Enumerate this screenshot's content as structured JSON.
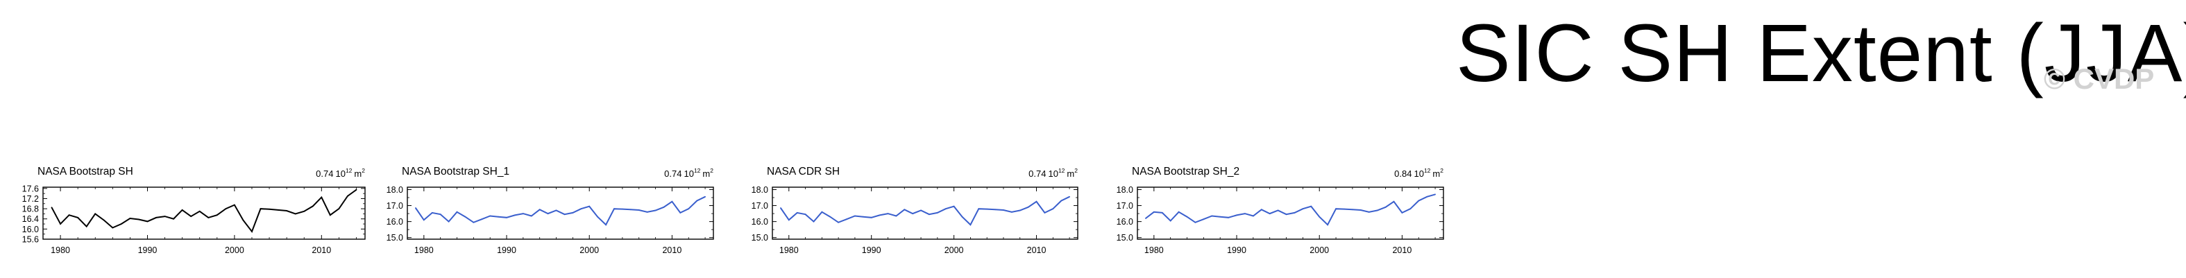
{
  "page": {
    "title": "SIC SH Extent (JJA)",
    "watermark": "© CVDP"
  },
  "colors": {
    "text": "#000000",
    "watermark": "#d2d2d2",
    "obs_line": "#000000",
    "model_line": "#3a5fcd"
  },
  "chart_data": [
    {
      "type": "line",
      "title": "NASA Bootstrap SH",
      "stat_value": "0.74",
      "stat_unit": "10",
      "stat_exp": "12",
      "stat_suffix": "m",
      "stat_suffix_exp": "2",
      "line_color": "#000000",
      "xlim": [
        1978,
        2015
      ],
      "ylim": [
        15.6,
        17.65
      ],
      "xticks": [
        1980,
        1990,
        2000,
        2010
      ],
      "yticks": [
        15.6,
        16.0,
        16.4,
        16.8,
        17.2,
        17.6
      ],
      "ytick_labels": [
        "15.6",
        "16.0",
        "16.4",
        "16.8",
        "17.2",
        "17.6"
      ],
      "yticks_minor": [
        15.8,
        16.2,
        16.6,
        17.0,
        17.4
      ],
      "right_ticks": true,
      "x": [
        1979,
        1980,
        1981,
        1982,
        1983,
        1984,
        1985,
        1986,
        1987,
        1988,
        1989,
        1990,
        1991,
        1992,
        1993,
        1994,
        1995,
        1996,
        1997,
        1998,
        1999,
        2000,
        2001,
        2002,
        2003,
        2004,
        2005,
        2006,
        2007,
        2008,
        2009,
        2010,
        2011,
        2012,
        2013,
        2014
      ],
      "values": [
        16.85,
        16.2,
        16.55,
        16.45,
        16.1,
        16.6,
        16.35,
        16.05,
        16.2,
        16.42,
        16.38,
        16.3,
        16.45,
        16.5,
        16.4,
        16.75,
        16.5,
        16.7,
        16.45,
        16.55,
        16.8,
        16.95,
        16.35,
        15.9,
        16.8,
        16.78,
        16.75,
        16.72,
        16.6,
        16.7,
        16.9,
        17.25,
        16.55,
        16.8,
        17.3,
        17.55
      ]
    },
    {
      "type": "line",
      "title": "NASA Bootstrap SH_1",
      "stat_value": "0.74",
      "stat_unit": "10",
      "stat_exp": "12",
      "stat_suffix": "m",
      "stat_suffix_exp": "2",
      "line_color": "#3a5fcd",
      "xlim": [
        1978,
        2015
      ],
      "ylim": [
        14.9,
        18.15
      ],
      "xticks": [
        1980,
        1990,
        2000,
        2010
      ],
      "yticks": [
        15.0,
        16.0,
        17.0,
        18.0
      ],
      "ytick_labels": [
        "15.0",
        "16.0",
        "17.0",
        "18.0"
      ],
      "yticks_minor": [
        15.5,
        16.5,
        17.5
      ],
      "right_ticks": true,
      "x": [
        1979,
        1980,
        1981,
        1982,
        1983,
        1984,
        1985,
        1986,
        1987,
        1988,
        1989,
        1990,
        1991,
        1992,
        1993,
        1994,
        1995,
        1996,
        1997,
        1998,
        1999,
        2000,
        2001,
        2002,
        2003,
        2004,
        2005,
        2006,
        2007,
        2008,
        2009,
        2010,
        2011,
        2012,
        2013,
        2014
      ],
      "values": [
        16.85,
        16.1,
        16.55,
        16.45,
        16.0,
        16.6,
        16.3,
        15.95,
        16.15,
        16.35,
        16.3,
        16.25,
        16.4,
        16.5,
        16.35,
        16.75,
        16.5,
        16.7,
        16.45,
        16.55,
        16.8,
        16.95,
        16.3,
        15.8,
        16.8,
        16.78,
        16.75,
        16.72,
        16.6,
        16.7,
        16.9,
        17.25,
        16.55,
        16.8,
        17.3,
        17.55
      ]
    },
    {
      "type": "line",
      "title": "NASA CDR SH",
      "stat_value": "0.74",
      "stat_unit": "10",
      "stat_exp": "12",
      "stat_suffix": "m",
      "stat_suffix_exp": "2",
      "line_color": "#3a5fcd",
      "xlim": [
        1978,
        2015
      ],
      "ylim": [
        14.9,
        18.15
      ],
      "xticks": [
        1980,
        1990,
        2000,
        2010
      ],
      "yticks": [
        15.0,
        16.0,
        17.0,
        18.0
      ],
      "ytick_labels": [
        "15.0",
        "16.0",
        "17.0",
        "18.0"
      ],
      "yticks_minor": [
        15.5,
        16.5,
        17.5
      ],
      "right_ticks": true,
      "x": [
        1979,
        1980,
        1981,
        1982,
        1983,
        1984,
        1985,
        1986,
        1987,
        1988,
        1989,
        1990,
        1991,
        1992,
        1993,
        1994,
        1995,
        1996,
        1997,
        1998,
        1999,
        2000,
        2001,
        2002,
        2003,
        2004,
        2005,
        2006,
        2007,
        2008,
        2009,
        2010,
        2011,
        2012,
        2013,
        2014
      ],
      "values": [
        16.85,
        16.1,
        16.55,
        16.45,
        16.0,
        16.6,
        16.3,
        15.95,
        16.15,
        16.35,
        16.3,
        16.25,
        16.4,
        16.5,
        16.35,
        16.75,
        16.5,
        16.7,
        16.45,
        16.55,
        16.8,
        16.95,
        16.3,
        15.8,
        16.8,
        16.78,
        16.75,
        16.72,
        16.6,
        16.7,
        16.9,
        17.25,
        16.55,
        16.8,
        17.3,
        17.55
      ]
    },
    {
      "type": "line",
      "title": "NASA Bootstrap SH_2",
      "stat_value": "0.84",
      "stat_unit": "10",
      "stat_exp": "12",
      "stat_suffix": "m",
      "stat_suffix_exp": "2",
      "line_color": "#3a5fcd",
      "xlim": [
        1978,
        2015
      ],
      "ylim": [
        14.9,
        18.15
      ],
      "xticks": [
        1980,
        1990,
        2000,
        2010
      ],
      "yticks": [
        15.0,
        16.0,
        17.0,
        18.0
      ],
      "ytick_labels": [
        "15.0",
        "16.0",
        "17.0",
        "18.0"
      ],
      "yticks_minor": [
        15.5,
        16.5,
        17.5
      ],
      "right_ticks": true,
      "x": [
        1979,
        1980,
        1981,
        1982,
        1983,
        1984,
        1985,
        1986,
        1987,
        1988,
        1989,
        1990,
        1991,
        1992,
        1993,
        1994,
        1995,
        1996,
        1997,
        1998,
        1999,
        2000,
        2001,
        2002,
        2003,
        2004,
        2005,
        2006,
        2007,
        2008,
        2009,
        2010,
        2011,
        2012,
        2013,
        2014
      ],
      "values": [
        16.2,
        16.6,
        16.55,
        16.05,
        16.6,
        16.3,
        15.95,
        16.15,
        16.35,
        16.3,
        16.25,
        16.4,
        16.5,
        16.35,
        16.75,
        16.5,
        16.7,
        16.45,
        16.55,
        16.8,
        16.95,
        16.3,
        15.8,
        16.8,
        16.78,
        16.75,
        16.72,
        16.6,
        16.7,
        16.9,
        17.25,
        16.55,
        16.8,
        17.3,
        17.55,
        17.7
      ]
    }
  ]
}
